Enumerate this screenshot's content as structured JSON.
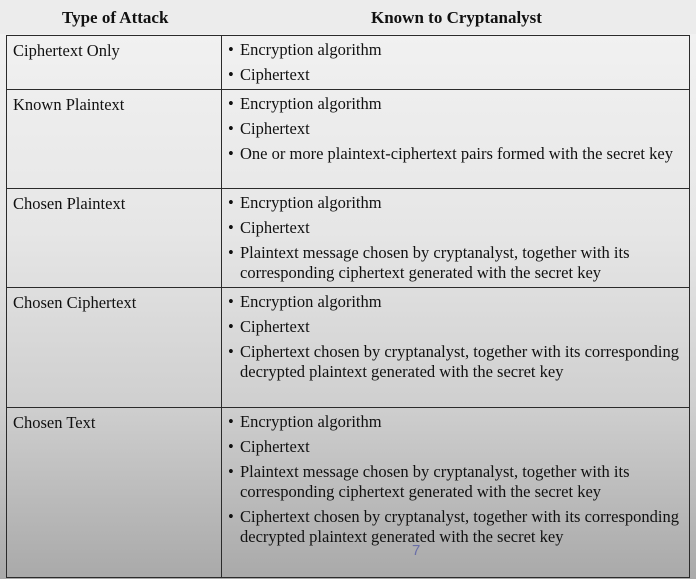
{
  "table": {
    "headers": {
      "attack": "Type of Attack",
      "known": "Known to Cryptanalyst"
    },
    "rows": [
      {
        "type": "Ciphertext Only",
        "known": [
          "Encryption algorithm",
          "Ciphertext"
        ]
      },
      {
        "type": "Known Plaintext",
        "known": [
          "Encryption algorithm",
          "Ciphertext",
          "One or more plaintext-ciphertext pairs formed with the secret key"
        ]
      },
      {
        "type": "Chosen Plaintext",
        "known": [
          "Encryption algorithm",
          "Ciphertext",
          "Plaintext message chosen by cryptanalyst, together with its corresponding ciphertext generated with the secret key"
        ]
      },
      {
        "type": "Chosen Ciphertext",
        "known": [
          "Encryption algorithm",
          "Ciphertext",
          "Ciphertext chosen by cryptanalyst, together with its corresponding decrypted plaintext generated with the secret key"
        ]
      },
      {
        "type": "Chosen Text",
        "known": [
          "Encryption algorithm",
          "Ciphertext",
          "Plaintext message chosen by cryptanalyst, together with its corresponding ciphertext generated with the secret key",
          "Ciphertext chosen by cryptanalyst, together with its corresponding decrypted plaintext generated with the secret key"
        ]
      }
    ]
  },
  "page_number": "7"
}
